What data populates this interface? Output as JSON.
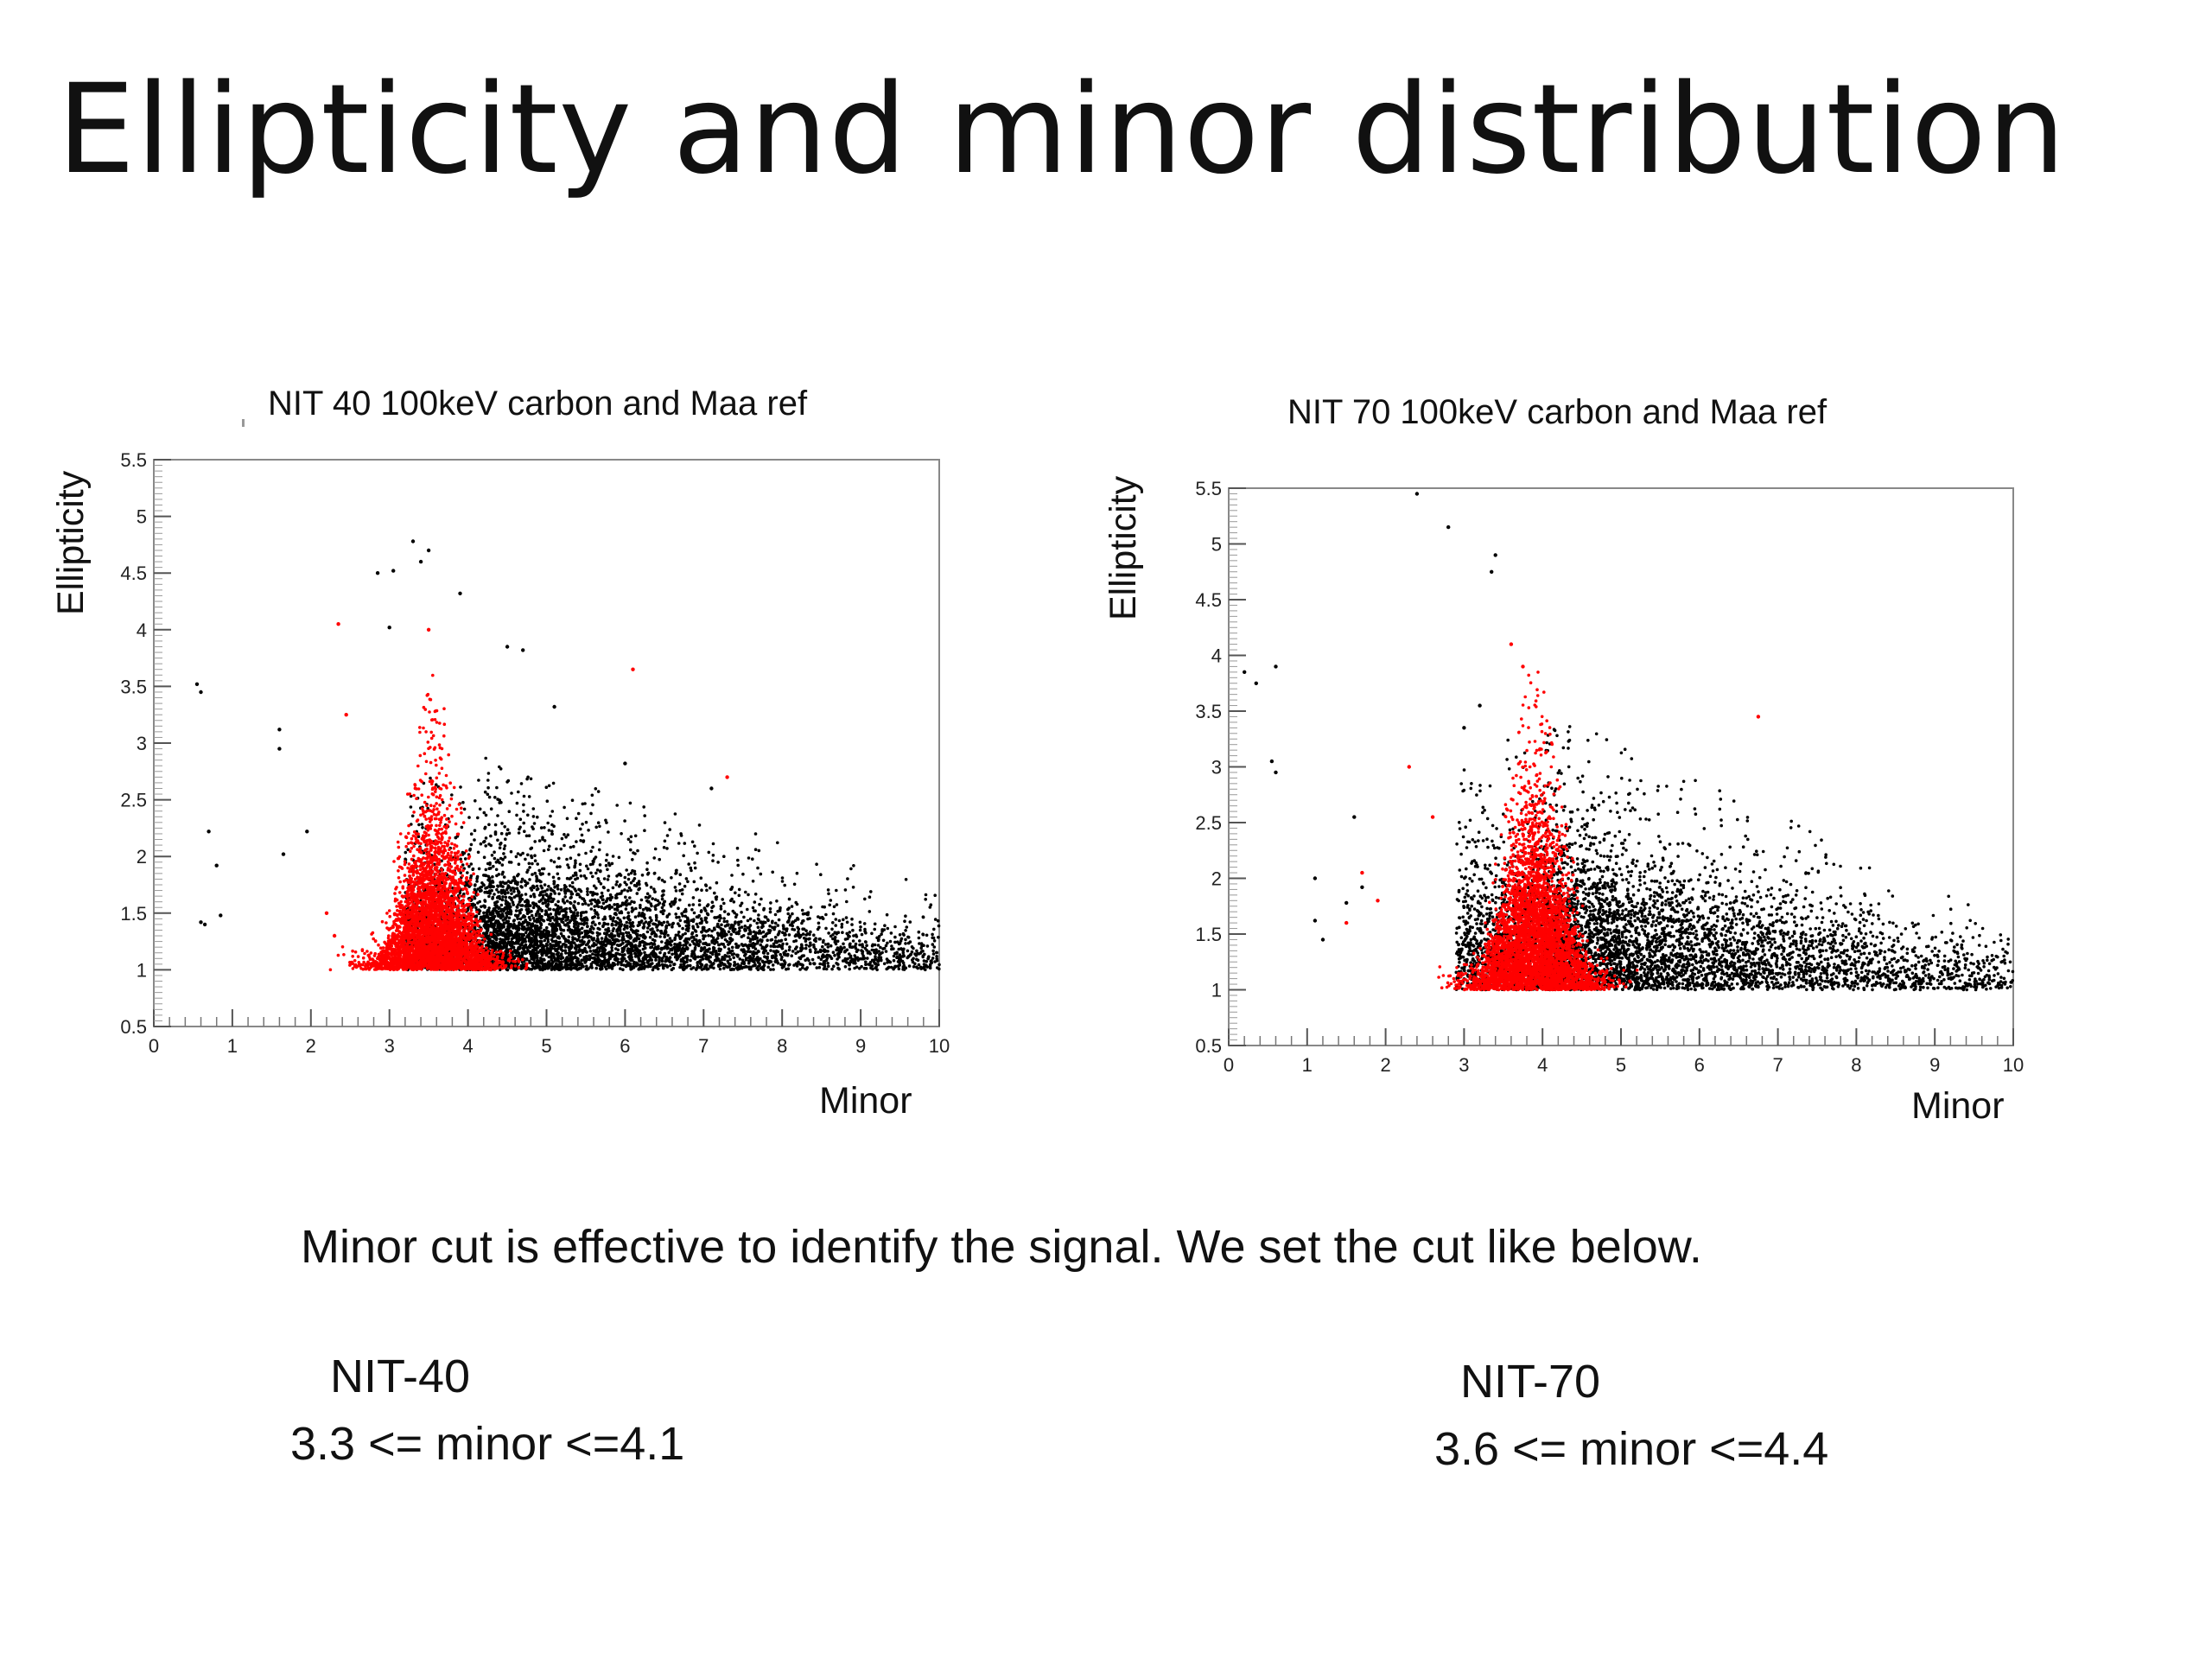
{
  "slide": {
    "title": "Ellipticity and minor distribution",
    "note": "Minor cut is effective to identify the signal. We set the cut like below.",
    "cuts": [
      {
        "name": "NIT-40",
        "range": "3.3 <= minor <=4.1"
      },
      {
        "name": "NIT-70",
        "range": "3.6 <= minor <=4.4"
      }
    ]
  },
  "colors": {
    "signal": "#ff0000",
    "reference": "#000000",
    "frame": "#888888"
  },
  "chart_data": [
    {
      "type": "scatter",
      "title": "NIT 40 100keV carbon and Maa ref",
      "xlabel": "Minor",
      "ylabel": "Ellipticity",
      "xlim": [
        0,
        10
      ],
      "ylim": [
        0.5,
        5.5
      ],
      "xticks": [
        "0",
        "1",
        "2",
        "3",
        "4",
        "5",
        "6",
        "7",
        "8",
        "9",
        "10"
      ],
      "yticks": [
        "0.5",
        "1",
        "1.5",
        "2",
        "2.5",
        "3",
        "3.5",
        "4",
        "4.5",
        "5",
        "5.5"
      ],
      "grid": false,
      "series": [
        {
          "color": "#000000",
          "distribution": {
            "x_min": 3.2,
            "x_max": 10,
            "peak_x": 4.2,
            "x_decay": 2.6,
            "y_floor": 1.0,
            "y_spread_at_peak": 0.9,
            "y_spread_at_max": 0.35,
            "count": 5200
          },
          "points": [
            [
              0.55,
              3.52
            ],
            [
              0.6,
              3.45
            ],
            [
              0.6,
              1.42
            ],
            [
              0.65,
              1.4
            ],
            [
              0.7,
              2.22
            ],
            [
              0.8,
              1.92
            ],
            [
              0.85,
              1.48
            ],
            [
              1.6,
              3.12
            ],
            [
              1.6,
              2.95
            ],
            [
              1.65,
              2.02
            ],
            [
              1.95,
              2.22
            ],
            [
              2.85,
              4.5
            ],
            [
              3.05,
              4.52
            ],
            [
              3.0,
              4.02
            ],
            [
              3.3,
              4.78
            ],
            [
              3.4,
              4.6
            ],
            [
              3.5,
              4.7
            ],
            [
              3.9,
              4.32
            ],
            [
              4.5,
              3.85
            ],
            [
              4.7,
              3.82
            ],
            [
              5.1,
              3.32
            ],
            [
              6.0,
              2.82
            ],
            [
              7.1,
              2.6
            ]
          ]
        },
        {
          "color": "#ff0000",
          "distribution": {
            "x_min": 2.1,
            "x_max": 5.0,
            "peak_x": 3.55,
            "x_sigma": 0.35,
            "y_floor": 1.0,
            "y_spread_at_peak": 1.3,
            "count": 3800
          },
          "points": [
            [
              2.35,
              4.05
            ],
            [
              2.45,
              3.25
            ],
            [
              3.5,
              4.0
            ],
            [
              6.1,
              3.65
            ],
            [
              7.3,
              2.7
            ],
            [
              2.2,
              1.5
            ],
            [
              2.3,
              1.3
            ]
          ]
        }
      ]
    },
    {
      "type": "scatter",
      "title": "NIT 70 100keV carbon and Maa ref",
      "xlabel": "Minor",
      "ylabel": "Ellipticity",
      "xlim": [
        0,
        10
      ],
      "ylim": [
        0.5,
        5.5
      ],
      "xticks": [
        "0",
        "1",
        "2",
        "3",
        "4",
        "5",
        "6",
        "7",
        "8",
        "9",
        "10"
      ],
      "yticks": [
        "0.5",
        "1",
        "1.5",
        "2",
        "2.5",
        "3",
        "3.5",
        "4",
        "4.5",
        "5",
        "5.5"
      ],
      "grid": false,
      "series": [
        {
          "color": "#000000",
          "distribution": {
            "x_min": 2.9,
            "x_max": 10,
            "peak_x": 4.0,
            "x_decay": 2.3,
            "y_floor": 1.0,
            "y_spread_at_peak": 1.2,
            "y_spread_at_max": 0.3,
            "count": 5200
          },
          "points": [
            [
              0.2,
              3.85
            ],
            [
              0.35,
              3.75
            ],
            [
              0.55,
              3.05
            ],
            [
              0.6,
              2.95
            ],
            [
              0.6,
              3.9
            ],
            [
              1.1,
              1.62
            ],
            [
              1.1,
              2.0
            ],
            [
              1.2,
              1.45
            ],
            [
              1.5,
              1.78
            ],
            [
              1.6,
              2.55
            ],
            [
              1.7,
              1.92
            ],
            [
              2.4,
              5.45
            ],
            [
              2.8,
              5.15
            ],
            [
              3.4,
              4.9
            ],
            [
              3.35,
              4.75
            ],
            [
              3.0,
              3.35
            ],
            [
              3.2,
              3.55
            ]
          ]
        },
        {
          "color": "#ff0000",
          "distribution": {
            "x_min": 2.4,
            "x_max": 5.3,
            "peak_x": 3.9,
            "x_sigma": 0.36,
            "y_floor": 1.0,
            "y_spread_at_peak": 1.5,
            "count": 4200
          },
          "points": [
            [
              1.5,
              1.6
            ],
            [
              1.7,
              2.05
            ],
            [
              1.9,
              1.8
            ],
            [
              2.3,
              3.0
            ],
            [
              2.6,
              2.55
            ],
            [
              6.75,
              3.45
            ],
            [
              3.6,
              4.1
            ],
            [
              3.75,
              3.9
            ]
          ]
        }
      ]
    }
  ]
}
